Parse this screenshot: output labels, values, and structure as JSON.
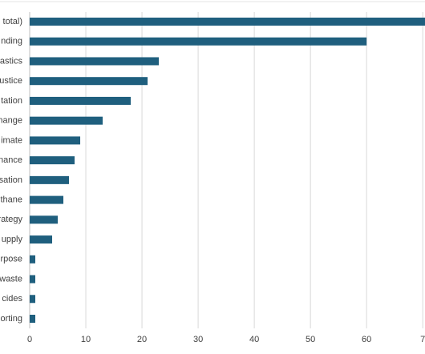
{
  "chart_data": {
    "type": "bar",
    "orientation": "horizontal",
    "categories": [
      "total)",
      "nding",
      "astics",
      "ustice",
      "tation",
      "hange",
      "imate",
      "nance",
      "sation",
      "thane",
      "rategy",
      "upply",
      "rpose",
      "waste",
      "cides",
      "orting"
    ],
    "values": [
      72,
      60,
      23,
      21,
      18,
      13,
      9,
      8,
      7,
      6,
      5,
      4,
      1,
      1,
      1,
      1
    ],
    "color": "#1f5f7e",
    "xlim": [
      0,
      70.4
    ],
    "xticks": [
      0,
      10,
      20,
      30,
      40,
      50,
      60,
      {
        "value": 70,
        "label": "7"
      }
    ],
    "grid": true
  }
}
